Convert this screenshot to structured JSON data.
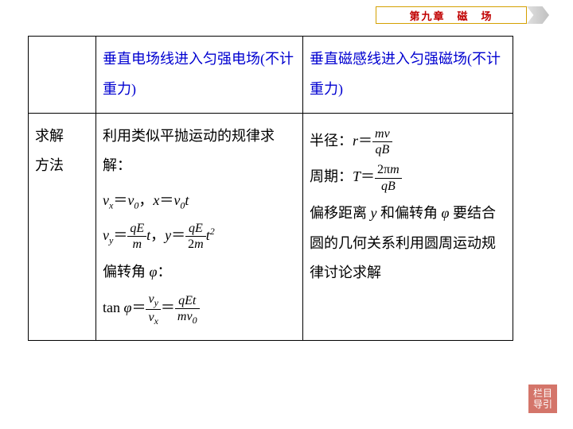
{
  "chapter": "第九章　磁　场",
  "nav_button": "栏目导引",
  "row_label_line1": "求解",
  "row_label_line2": "方法",
  "header_left": "垂直电场线进入匀强电场(不计重力)",
  "header_right": "垂直磁感线进入匀强磁场(不计重力)",
  "left_intro": "利用类似平抛运动的规律求解：",
  "left_angle_label": "偏转角 ",
  "right_radius_label": "半径：",
  "right_period_label": "周期：",
  "right_desc1": "偏移距离 ",
  "right_desc2": " 和偏转角 ",
  "right_desc3": " 要结合圆的几何关系利用圆周运动规律讨论求解",
  "colors": {
    "header_text": "#0000d0",
    "chapter_text": "#c00000",
    "nav_bg": "#d4756a"
  }
}
